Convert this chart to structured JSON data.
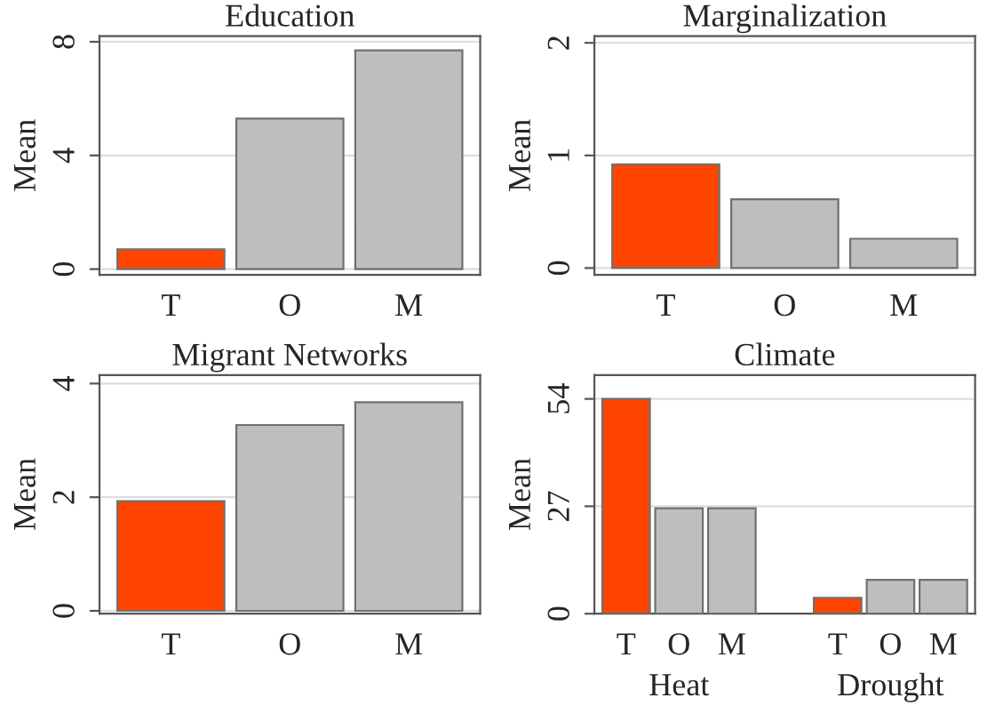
{
  "chart_data": [
    {
      "type": "bar",
      "title": "Education",
      "ylabel": "Mean",
      "categories": [
        "T",
        "O",
        "M"
      ],
      "values": [
        0.7,
        5.3,
        7.7
      ],
      "colors": [
        "#ff4500",
        "#bebebe",
        "#bebebe"
      ],
      "ylim": [
        -0.2,
        8.2
      ],
      "yticks": [
        0,
        4,
        8
      ],
      "grid": "y"
    },
    {
      "type": "bar",
      "title": "Marginalization",
      "ylabel": "Mean",
      "categories": [
        "T",
        "O",
        "M"
      ],
      "values": [
        0.92,
        0.61,
        0.26
      ],
      "colors": [
        "#ff4500",
        "#bebebe",
        "#bebebe"
      ],
      "ylim": [
        -0.06,
        2.06
      ],
      "yticks": [
        0,
        1,
        2
      ],
      "grid": "y"
    },
    {
      "type": "bar",
      "title": "Migrant Networks",
      "ylabel": "Mean",
      "categories": [
        "T",
        "O",
        "M"
      ],
      "values": [
        1.93,
        3.27,
        3.67
      ],
      "colors": [
        "#ff4500",
        "#bebebe",
        "#bebebe"
      ],
      "ylim": [
        -0.05,
        4.15
      ],
      "yticks": [
        0,
        2,
        4
      ],
      "grid": "y"
    },
    {
      "type": "bar",
      "title": "Climate",
      "ylabel": "Mean",
      "categories": [
        "T",
        "O",
        "M",
        null,
        "T",
        "O",
        "M"
      ],
      "values": [
        54,
        26.5,
        26.5,
        null,
        4,
        8.5,
        8.5
      ],
      "colors": [
        "#ff4500",
        "#bebebe",
        "#bebebe",
        "#bebebe",
        "#ff4500",
        "#bebebe",
        "#bebebe"
      ],
      "ylim": [
        0,
        60
      ],
      "yticks": [
        0,
        27,
        54
      ],
      "grid": "y",
      "annotations": [
        "Heat",
        "Drought"
      ]
    }
  ]
}
